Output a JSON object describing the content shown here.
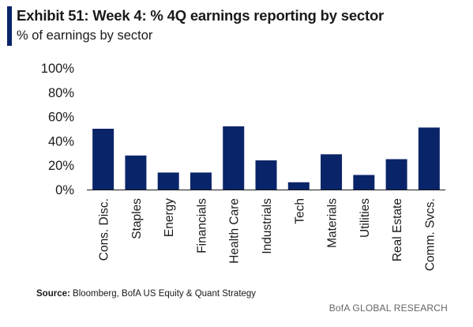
{
  "colors": {
    "accent": "#0a2469",
    "bar": "#0a2469"
  },
  "title": "Exhibit 51: Week 4: % 4Q earnings reporting by sector",
  "subtitle": "% of earnings by sector",
  "source": {
    "label": "Source:",
    "text": " Bloomberg, BofA US Equity & Quant Strategy"
  },
  "brand": "BofA GLOBAL RESEARCH",
  "chart_data": {
    "type": "bar",
    "categories": [
      "Cons. Disc.",
      "Staples",
      "Energy",
      "Financials",
      "Health Care",
      "Industrials",
      "Tech",
      "Materials",
      "Utilities",
      "Real Estate",
      "Comm. Svcs."
    ],
    "values": [
      50,
      28,
      14,
      14,
      52,
      24,
      6,
      29,
      12,
      25,
      51
    ],
    "ylim": [
      0,
      100
    ],
    "yticks": [
      0,
      20,
      40,
      60,
      80,
      100
    ],
    "ytick_labels": [
      "0%",
      "20%",
      "40%",
      "60%",
      "80%",
      "100%"
    ],
    "grid": false,
    "legend": "none"
  }
}
